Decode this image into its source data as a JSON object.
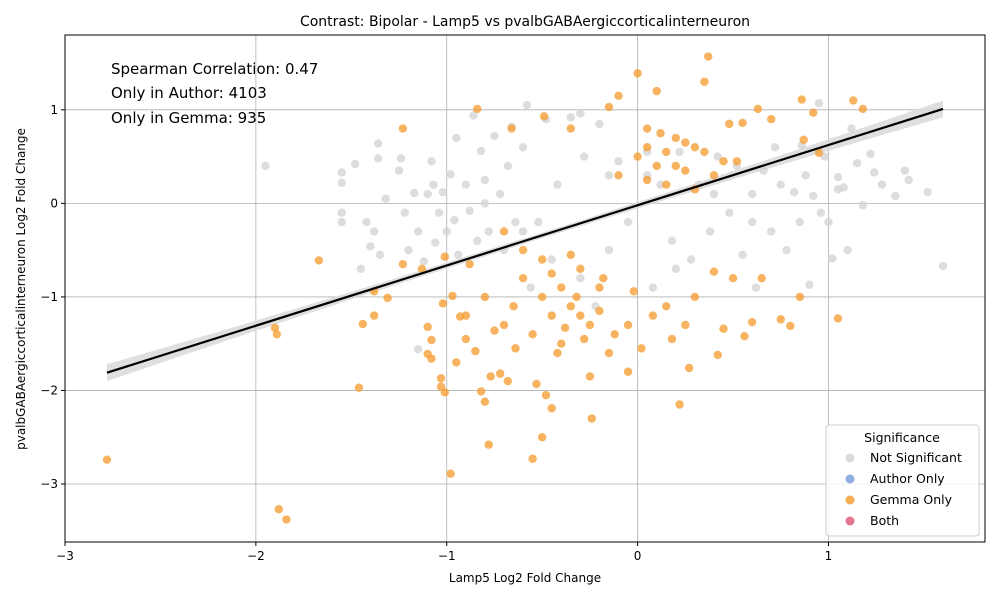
{
  "chart_data": {
    "type": "scatter",
    "title": "Contrast: Bipolar - Lamp5 vs pvalbGABAergiccorticalinterneuron",
    "xlabel": "Lamp5 Log2 Fold Change",
    "ylabel": "pvalbGABAergiccorticalinterneuron Log2 Fold Change",
    "xlim": [
      -3.0,
      1.82
    ],
    "ylim": [
      -3.62,
      1.8
    ],
    "xticks": [
      -3,
      -2,
      -1,
      0,
      1
    ],
    "yticks": [
      -3,
      -2,
      -1,
      0,
      1
    ],
    "xtick_labels": [
      "−3",
      "−2",
      "−1",
      "0",
      "1"
    ],
    "ytick_labels": [
      "−3",
      "−2",
      "−1",
      "0",
      "1"
    ],
    "grid": true,
    "annotations": [
      "Spearman Correlation: 0.47",
      "Only in Author: 4103",
      "Only in Gemma: 935"
    ],
    "legend": {
      "title": "Significance",
      "placement": "lower-right",
      "entries": [
        "Not Significant",
        "Author Only",
        "Gemma Only",
        "Both"
      ]
    },
    "colors": {
      "Not Significant": "#d3d3d3",
      "Author Only": "#7b9fd9",
      "Gemma Only": "#f59e33",
      "Both": "#e05c7a",
      "regression": "#000000",
      "ci_band": "#d9d9d9"
    },
    "regression": {
      "x": [
        -2.78,
        1.6
      ],
      "y": [
        -1.81,
        1.01
      ],
      "ci_halfwidth_ends": 0.09
    },
    "series": [
      {
        "name": "Not Significant",
        "points": [
          [
            -1.95,
            0.4
          ],
          [
            -1.55,
            0.33
          ],
          [
            -1.55,
            0.22
          ],
          [
            -1.55,
            -0.1
          ],
          [
            -1.55,
            -0.2
          ],
          [
            -1.48,
            0.42
          ],
          [
            -1.45,
            -0.7
          ],
          [
            -1.42,
            -0.2
          ],
          [
            -1.4,
            -0.46
          ],
          [
            -1.38,
            -0.3
          ],
          [
            -1.36,
            0.48
          ],
          [
            -1.36,
            0.64
          ],
          [
            -1.35,
            -0.55
          ],
          [
            -1.32,
            0.05
          ],
          [
            -1.25,
            0.35
          ],
          [
            -1.24,
            0.48
          ],
          [
            -1.22,
            -0.1
          ],
          [
            -1.2,
            -0.5
          ],
          [
            -1.17,
            0.11
          ],
          [
            -1.15,
            -0.3
          ],
          [
            -1.15,
            -1.56
          ],
          [
            -1.12,
            -0.62
          ],
          [
            -1.1,
            0.1
          ],
          [
            -1.08,
            0.45
          ],
          [
            -1.07,
            0.2
          ],
          [
            -1.06,
            -0.42
          ],
          [
            -1.04,
            -0.1
          ],
          [
            -1.02,
            0.12
          ],
          [
            -1.0,
            -0.3
          ],
          [
            -0.98,
            0.31
          ],
          [
            -0.96,
            -0.18
          ],
          [
            -0.95,
            0.7
          ],
          [
            -0.94,
            -0.55
          ],
          [
            -0.9,
            0.2
          ],
          [
            -0.88,
            -0.08
          ],
          [
            -0.86,
            0.94
          ],
          [
            -0.84,
            -0.4
          ],
          [
            -0.82,
            0.56
          ],
          [
            -0.8,
            0.25
          ],
          [
            -0.78,
            -0.3
          ],
          [
            -0.75,
            0.72
          ],
          [
            -0.72,
            0.1
          ],
          [
            -0.7,
            -0.5
          ],
          [
            -0.68,
            0.4
          ],
          [
            -0.66,
            0.82
          ],
          [
            -0.64,
            -0.2
          ],
          [
            -0.6,
            0.6
          ],
          [
            -0.58,
            1.05
          ],
          [
            -0.56,
            -0.9
          ],
          [
            -0.52,
            -0.2
          ],
          [
            -0.48,
            0.9
          ],
          [
            -0.45,
            -0.6
          ],
          [
            -0.42,
            0.2
          ],
          [
            -0.35,
            0.92
          ],
          [
            -0.3,
            -0.8
          ],
          [
            -0.28,
            0.5
          ],
          [
            -0.22,
            -1.1
          ],
          [
            -0.2,
            0.85
          ],
          [
            -0.15,
            -0.5
          ],
          [
            -0.1,
            0.45
          ],
          [
            -0.05,
            -0.2
          ],
          [
            0.05,
            0.3
          ],
          [
            0.08,
            -0.9
          ],
          [
            0.12,
            0.2
          ],
          [
            0.18,
            -0.4
          ],
          [
            0.22,
            0.55
          ],
          [
            0.28,
            -0.6
          ],
          [
            0.32,
            0.2
          ],
          [
            0.38,
            -0.3
          ],
          [
            0.42,
            0.5
          ],
          [
            0.48,
            -0.1
          ],
          [
            0.52,
            0.4
          ],
          [
            0.55,
            -0.55
          ],
          [
            0.6,
            0.1
          ],
          [
            0.62,
            -0.9
          ],
          [
            0.66,
            0.35
          ],
          [
            0.7,
            -0.3
          ],
          [
            0.72,
            0.6
          ],
          [
            0.75,
            0.2
          ],
          [
            0.78,
            -0.5
          ],
          [
            0.82,
            0.12
          ],
          [
            0.85,
            -0.2
          ],
          [
            0.86,
            0.62
          ],
          [
            0.88,
            0.3
          ],
          [
            0.9,
            -0.87
          ],
          [
            0.92,
            0.08
          ],
          [
            0.95,
            1.07
          ],
          [
            0.96,
            -0.1
          ],
          [
            0.98,
            0.5
          ],
          [
            1.0,
            -0.2
          ],
          [
            1.02,
            -0.59
          ],
          [
            1.05,
            0.15
          ],
          [
            1.05,
            0.28
          ],
          [
            1.08,
            0.17
          ],
          [
            1.1,
            -0.5
          ],
          [
            1.12,
            0.8
          ],
          [
            1.15,
            0.43
          ],
          [
            1.18,
            -0.02
          ],
          [
            1.22,
            0.53
          ],
          [
            1.24,
            0.33
          ],
          [
            1.28,
            0.2
          ],
          [
            1.35,
            0.08
          ],
          [
            1.4,
            0.35
          ],
          [
            1.42,
            0.25
          ],
          [
            1.52,
            0.12
          ],
          [
            1.6,
            -0.67
          ],
          [
            -0.3,
            0.96
          ],
          [
            0.05,
            0.55
          ],
          [
            -0.15,
            0.3
          ],
          [
            0.2,
            -0.7
          ],
          [
            -0.6,
            -0.3
          ],
          [
            0.4,
            0.1
          ],
          [
            -0.8,
            0.0
          ],
          [
            0.6,
            -0.2
          ]
        ]
      },
      {
        "name": "Gemma Only",
        "points": [
          [
            -2.78,
            -2.74
          ],
          [
            -1.88,
            -3.27
          ],
          [
            -1.84,
            -3.38
          ],
          [
            -1.9,
            -1.33
          ],
          [
            -1.89,
            -1.4
          ],
          [
            -1.67,
            -0.61
          ],
          [
            -1.46,
            -1.97
          ],
          [
            -1.44,
            -1.29
          ],
          [
            -1.38,
            -1.2
          ],
          [
            -1.38,
            -0.94
          ],
          [
            -1.31,
            -1.01
          ],
          [
            -1.23,
            0.8
          ],
          [
            -1.23,
            -0.65
          ],
          [
            -1.13,
            -0.7
          ],
          [
            -1.1,
            -1.32
          ],
          [
            -1.1,
            -1.61
          ],
          [
            -1.08,
            -1.66
          ],
          [
            -1.08,
            -1.46
          ],
          [
            -1.03,
            -1.87
          ],
          [
            -1.03,
            -1.96
          ],
          [
            -1.01,
            -2.02
          ],
          [
            -1.02,
            -1.07
          ],
          [
            -1.01,
            -0.57
          ],
          [
            -0.98,
            -2.89
          ],
          [
            -0.97,
            -0.99
          ],
          [
            -0.95,
            -1.7
          ],
          [
            -0.93,
            -1.21
          ],
          [
            -0.9,
            -1.45
          ],
          [
            -0.88,
            -0.65
          ],
          [
            -0.85,
            -1.58
          ],
          [
            -0.84,
            1.01
          ],
          [
            -0.82,
            -2.01
          ],
          [
            -0.8,
            -2.12
          ],
          [
            -0.78,
            -2.58
          ],
          [
            -0.77,
            -1.85
          ],
          [
            -0.75,
            -1.36
          ],
          [
            -0.72,
            -1.82
          ],
          [
            -0.7,
            -0.3
          ],
          [
            -0.68,
            -1.9
          ],
          [
            -0.66,
            0.8
          ],
          [
            -0.64,
            -1.55
          ],
          [
            -0.6,
            -0.5
          ],
          [
            -0.55,
            -2.73
          ],
          [
            -0.53,
            -1.93
          ],
          [
            -0.5,
            -2.5
          ],
          [
            -0.49,
            0.93
          ],
          [
            -0.48,
            -2.05
          ],
          [
            -0.45,
            -2.19
          ],
          [
            -0.42,
            -1.6
          ],
          [
            -0.38,
            -1.33
          ],
          [
            -0.35,
            0.8
          ],
          [
            -0.32,
            -1.0
          ],
          [
            -0.28,
            -1.45
          ],
          [
            -0.25,
            -1.85
          ],
          [
            -0.24,
            -2.3
          ],
          [
            -0.2,
            -1.15
          ],
          [
            -0.18,
            -0.8
          ],
          [
            -0.15,
            1.03
          ],
          [
            -0.12,
            -1.4
          ],
          [
            -0.1,
            1.15
          ],
          [
            -0.05,
            -1.8
          ],
          [
            -0.02,
            -0.94
          ],
          [
            0.0,
            1.39
          ],
          [
            0.02,
            -1.55
          ],
          [
            0.05,
            0.6
          ],
          [
            0.08,
            -1.2
          ],
          [
            0.1,
            1.2
          ],
          [
            0.12,
            0.75
          ],
          [
            0.15,
            -1.1
          ],
          [
            0.18,
            -1.45
          ],
          [
            0.2,
            0.4
          ],
          [
            0.22,
            -2.15
          ],
          [
            0.25,
            -1.3
          ],
          [
            0.27,
            -1.76
          ],
          [
            0.3,
            0.6
          ],
          [
            0.35,
            1.3
          ],
          [
            0.37,
            1.57
          ],
          [
            0.4,
            -0.73
          ],
          [
            0.42,
            -1.62
          ],
          [
            0.45,
            -1.34
          ],
          [
            0.48,
            0.85
          ],
          [
            0.52,
            0.45
          ],
          [
            0.55,
            0.86
          ],
          [
            0.56,
            -1.42
          ],
          [
            0.6,
            -1.27
          ],
          [
            0.63,
            1.01
          ],
          [
            0.65,
            -0.8
          ],
          [
            0.7,
            0.9
          ],
          [
            0.75,
            -1.24
          ],
          [
            0.8,
            -1.31
          ],
          [
            0.85,
            -1.0
          ],
          [
            0.86,
            1.11
          ],
          [
            0.87,
            0.68
          ],
          [
            0.92,
            0.97
          ],
          [
            0.95,
            0.54
          ],
          [
            1.05,
            -1.23
          ],
          [
            1.13,
            1.1
          ],
          [
            1.18,
            1.01
          ],
          [
            -0.5,
            -1.0
          ],
          [
            -0.45,
            -1.2
          ],
          [
            -0.4,
            -0.9
          ],
          [
            -0.35,
            -1.1
          ],
          [
            -0.3,
            -0.7
          ],
          [
            -0.25,
            -1.3
          ],
          [
            -0.2,
            -0.9
          ],
          [
            -0.55,
            -1.4
          ],
          [
            -0.6,
            -0.8
          ],
          [
            -0.65,
            -1.1
          ],
          [
            -0.4,
            -1.5
          ],
          [
            -0.3,
            -1.2
          ],
          [
            0.1,
            0.4
          ],
          [
            0.15,
            0.2
          ],
          [
            0.2,
            0.7
          ],
          [
            0.25,
            0.35
          ],
          [
            0.05,
            0.25
          ],
          [
            0.3,
            0.15
          ],
          [
            0.0,
            0.5
          ],
          [
            0.35,
            0.55
          ],
          [
            0.4,
            0.3
          ],
          [
            0.45,
            0.45
          ],
          [
            0.15,
            0.55
          ],
          [
            0.25,
            0.65
          ],
          [
            -0.1,
            0.3
          ],
          [
            0.05,
            0.8
          ],
          [
            -0.5,
            -0.6
          ],
          [
            -0.45,
            -0.75
          ],
          [
            -0.35,
            -0.55
          ],
          [
            -0.7,
            -1.3
          ],
          [
            -0.8,
            -1.0
          ],
          [
            -0.9,
            -1.2
          ],
          [
            0.3,
            -1.0
          ],
          [
            0.5,
            -0.8
          ],
          [
            -0.15,
            -1.6
          ],
          [
            -0.05,
            -1.3
          ]
        ]
      },
      {
        "name": "Author Only",
        "points": []
      },
      {
        "name": "Both",
        "points": []
      }
    ]
  }
}
